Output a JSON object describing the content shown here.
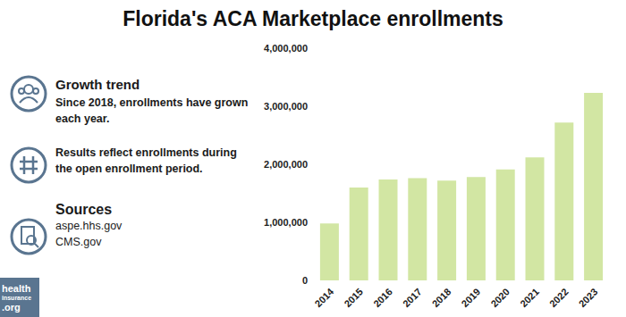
{
  "chart_data": {
    "type": "bar",
    "title": "Florida's ACA Marketplace enrollments",
    "categories": [
      "2014",
      "2015",
      "2016",
      "2017",
      "2018",
      "2019",
      "2020",
      "2021",
      "2022",
      "2023"
    ],
    "values": [
      980000,
      1600000,
      1740000,
      1760000,
      1720000,
      1780000,
      1910000,
      2120000,
      2720000,
      3230000
    ],
    "color": "#d2e6a3",
    "ylim": [
      0,
      4000000
    ],
    "yticks": [
      0,
      {
        "value": 1000000,
        "label": "1,000,000"
      },
      {
        "value": 2000000,
        "label": "2,000,000"
      },
      {
        "value": 3000000,
        "label": "3,000,000"
      },
      {
        "value": 4000000,
        "label": "4,000,000"
      }
    ],
    "grid": false,
    "notes": [
      {
        "heading": "Growth trend",
        "text": "Since 2018, enrollments have grown each year."
      },
      {
        "text": "Results reflect enrollments during the open enrollment period."
      }
    ],
    "sources": {
      "heading": "Sources",
      "items": [
        "aspe.hhs.gov",
        "CMS.gov"
      ]
    },
    "logo": [
      "health",
      "insurance",
      ".org"
    ]
  }
}
